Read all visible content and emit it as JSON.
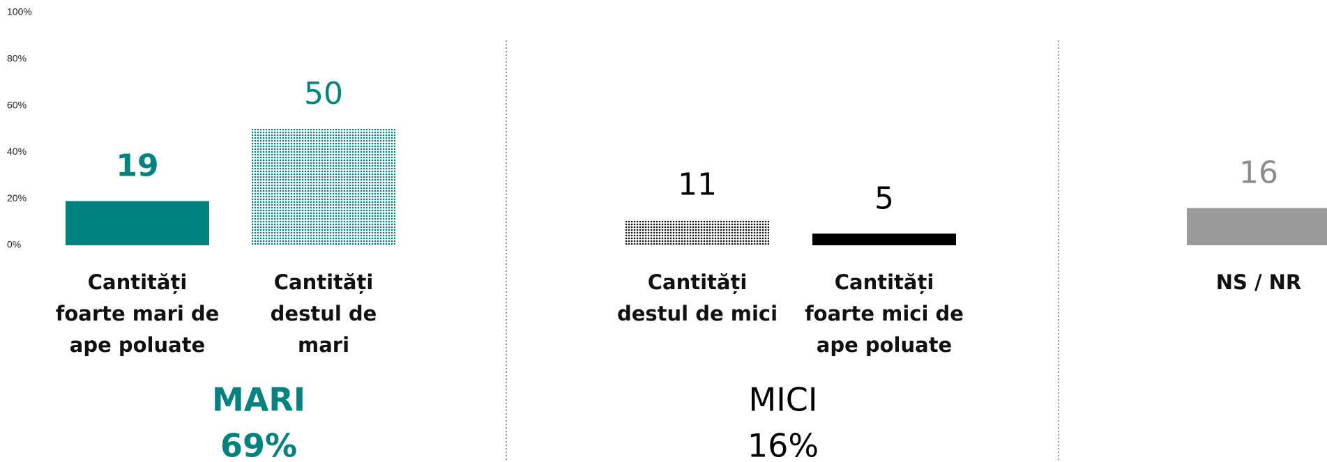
{
  "chart_data": {
    "type": "bar",
    "categories": [
      "Cantități foarte mari de ape poluate",
      "Cantități destul de mari",
      "Cantități destul de mici",
      "Cantități foarte mici de ape poluate",
      "NS / NR"
    ],
    "values": [
      19,
      50,
      11,
      5,
      16
    ],
    "colors": [
      "#00827f",
      "#00827f",
      "#111111",
      "#000000",
      "#9a9a9a"
    ],
    "patterns": [
      "solid",
      "dots",
      "dots",
      "solid",
      "solid"
    ],
    "label_colors": [
      "#00827f",
      "#00827f",
      "#000000",
      "#000000",
      "#8c8c8c"
    ],
    "label_bold": [
      true,
      false,
      false,
      false,
      false
    ],
    "ylim": [
      0,
      100
    ],
    "yticks": [
      {
        "value": 0,
        "label": "0%"
      },
      {
        "value": 20,
        "label": "20%"
      },
      {
        "value": 40,
        "label": "40%"
      },
      {
        "value": 60,
        "label": "60%"
      },
      {
        "value": 80,
        "label": "80%"
      },
      {
        "value": 100,
        "label": "100%"
      }
    ],
    "groups": [
      {
        "name": "MARI",
        "total": "69%",
        "color": "#00827f",
        "bold": true
      },
      {
        "name": "MICI",
        "total": "16%",
        "color": "#000000",
        "bold": false
      }
    ]
  }
}
